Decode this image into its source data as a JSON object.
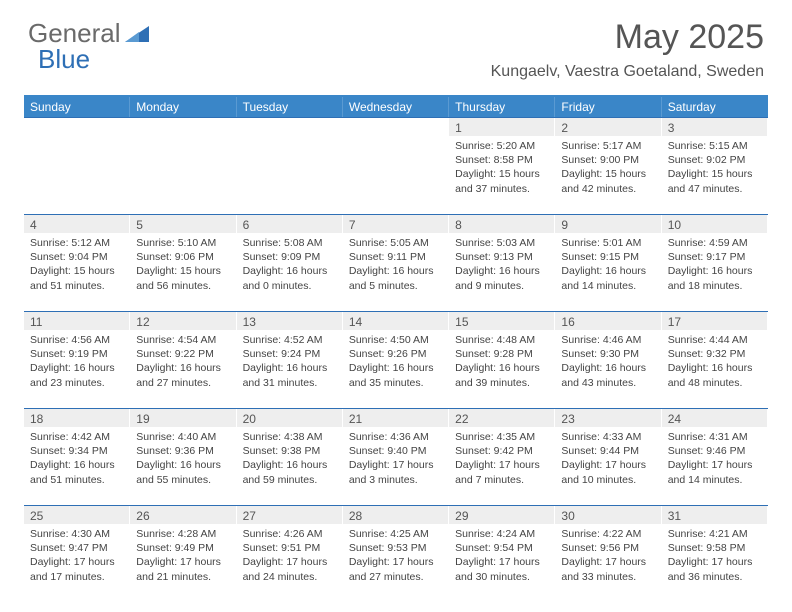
{
  "logo": {
    "text1": "General",
    "text2": "Blue"
  },
  "title": "May 2025",
  "location": "Kungaelv, Vaestra Goetaland, Sweden",
  "colors": {
    "header_bg": "#3a86c8",
    "rule": "#2e6fb5",
    "daybar": "#eeeeee",
    "text": "#444444",
    "logo_gray": "#6a6a6a",
    "logo_blue": "#2e6fb5"
  },
  "dow": [
    "Sunday",
    "Monday",
    "Tuesday",
    "Wednesday",
    "Thursday",
    "Friday",
    "Saturday"
  ],
  "weeks": [
    [
      null,
      null,
      null,
      null,
      {
        "n": "1",
        "sr": "5:20 AM",
        "ss": "8:58 PM",
        "dl": "15 hours and 37 minutes."
      },
      {
        "n": "2",
        "sr": "5:17 AM",
        "ss": "9:00 PM",
        "dl": "15 hours and 42 minutes."
      },
      {
        "n": "3",
        "sr": "5:15 AM",
        "ss": "9:02 PM",
        "dl": "15 hours and 47 minutes."
      }
    ],
    [
      {
        "n": "4",
        "sr": "5:12 AM",
        "ss": "9:04 PM",
        "dl": "15 hours and 51 minutes."
      },
      {
        "n": "5",
        "sr": "5:10 AM",
        "ss": "9:06 PM",
        "dl": "15 hours and 56 minutes."
      },
      {
        "n": "6",
        "sr": "5:08 AM",
        "ss": "9:09 PM",
        "dl": "16 hours and 0 minutes."
      },
      {
        "n": "7",
        "sr": "5:05 AM",
        "ss": "9:11 PM",
        "dl": "16 hours and 5 minutes."
      },
      {
        "n": "8",
        "sr": "5:03 AM",
        "ss": "9:13 PM",
        "dl": "16 hours and 9 minutes."
      },
      {
        "n": "9",
        "sr": "5:01 AM",
        "ss": "9:15 PM",
        "dl": "16 hours and 14 minutes."
      },
      {
        "n": "10",
        "sr": "4:59 AM",
        "ss": "9:17 PM",
        "dl": "16 hours and 18 minutes."
      }
    ],
    [
      {
        "n": "11",
        "sr": "4:56 AM",
        "ss": "9:19 PM",
        "dl": "16 hours and 23 minutes."
      },
      {
        "n": "12",
        "sr": "4:54 AM",
        "ss": "9:22 PM",
        "dl": "16 hours and 27 minutes."
      },
      {
        "n": "13",
        "sr": "4:52 AM",
        "ss": "9:24 PM",
        "dl": "16 hours and 31 minutes."
      },
      {
        "n": "14",
        "sr": "4:50 AM",
        "ss": "9:26 PM",
        "dl": "16 hours and 35 minutes."
      },
      {
        "n": "15",
        "sr": "4:48 AM",
        "ss": "9:28 PM",
        "dl": "16 hours and 39 minutes."
      },
      {
        "n": "16",
        "sr": "4:46 AM",
        "ss": "9:30 PM",
        "dl": "16 hours and 43 minutes."
      },
      {
        "n": "17",
        "sr": "4:44 AM",
        "ss": "9:32 PM",
        "dl": "16 hours and 48 minutes."
      }
    ],
    [
      {
        "n": "18",
        "sr": "4:42 AM",
        "ss": "9:34 PM",
        "dl": "16 hours and 51 minutes."
      },
      {
        "n": "19",
        "sr": "4:40 AM",
        "ss": "9:36 PM",
        "dl": "16 hours and 55 minutes."
      },
      {
        "n": "20",
        "sr": "4:38 AM",
        "ss": "9:38 PM",
        "dl": "16 hours and 59 minutes."
      },
      {
        "n": "21",
        "sr": "4:36 AM",
        "ss": "9:40 PM",
        "dl": "17 hours and 3 minutes."
      },
      {
        "n": "22",
        "sr": "4:35 AM",
        "ss": "9:42 PM",
        "dl": "17 hours and 7 minutes."
      },
      {
        "n": "23",
        "sr": "4:33 AM",
        "ss": "9:44 PM",
        "dl": "17 hours and 10 minutes."
      },
      {
        "n": "24",
        "sr": "4:31 AM",
        "ss": "9:46 PM",
        "dl": "17 hours and 14 minutes."
      }
    ],
    [
      {
        "n": "25",
        "sr": "4:30 AM",
        "ss": "9:47 PM",
        "dl": "17 hours and 17 minutes."
      },
      {
        "n": "26",
        "sr": "4:28 AM",
        "ss": "9:49 PM",
        "dl": "17 hours and 21 minutes."
      },
      {
        "n": "27",
        "sr": "4:26 AM",
        "ss": "9:51 PM",
        "dl": "17 hours and 24 minutes."
      },
      {
        "n": "28",
        "sr": "4:25 AM",
        "ss": "9:53 PM",
        "dl": "17 hours and 27 minutes."
      },
      {
        "n": "29",
        "sr": "4:24 AM",
        "ss": "9:54 PM",
        "dl": "17 hours and 30 minutes."
      },
      {
        "n": "30",
        "sr": "4:22 AM",
        "ss": "9:56 PM",
        "dl": "17 hours and 33 minutes."
      },
      {
        "n": "31",
        "sr": "4:21 AM",
        "ss": "9:58 PM",
        "dl": "17 hours and 36 minutes."
      }
    ]
  ],
  "labels": {
    "sunrise": "Sunrise: ",
    "sunset": "Sunset: ",
    "daylight": "Daylight: "
  }
}
